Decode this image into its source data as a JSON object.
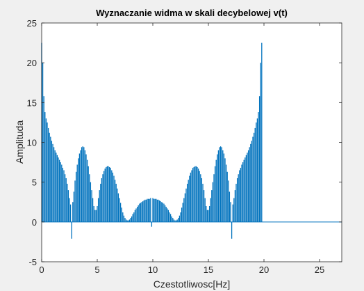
{
  "window": {
    "background": "#f0f0f0"
  },
  "chart_data": {
    "type": "bar",
    "title": "Wyznaczanie widma w skali decybelowej v(t)",
    "xlabel": "Czestotliwosc[Hz]",
    "ylabel": "Amplituda",
    "xlim": [
      0,
      27
    ],
    "ylim": [
      -5,
      25
    ],
    "xticks": [
      0,
      5,
      10,
      15,
      20,
      25
    ],
    "yticks": [
      -5,
      0,
      5,
      10,
      15,
      20,
      25
    ],
    "grid": false,
    "bar_color": "#0072bd",
    "series": [
      {
        "x_start": 0,
        "x_step": 0.1,
        "values": [
          22.5,
          20.0,
          15.8,
          13.8,
          13.0,
          12.5,
          11.8,
          11.2,
          10.7,
          10.2,
          9.8,
          9.4,
          9.0,
          8.7,
          8.4,
          8.1,
          7.8,
          7.5,
          7.2,
          6.8,
          6.5,
          6.0,
          5.5,
          4.8,
          4.0,
          3.0,
          2.2,
          -2.1,
          2.5,
          3.8,
          5.2,
          6.3,
          7.2,
          8.0,
          8.6,
          9.0,
          9.4,
          9.5,
          9.4,
          9.0,
          8.5,
          7.8,
          7.0,
          6.0,
          5.0,
          4.0,
          3.0,
          2.0,
          1.5,
          1.5,
          2.0,
          3.0,
          4.0,
          4.8,
          5.5,
          6.0,
          6.4,
          6.7,
          6.9,
          7.0,
          7.0,
          6.9,
          6.8,
          6.5,
          6.2,
          5.8,
          5.3,
          4.8,
          4.2,
          3.6,
          3.0,
          2.4,
          1.8,
          1.2,
          0.8,
          0.5,
          0.3,
          0.2,
          0.2,
          0.3,
          0.5,
          0.7,
          1.0,
          1.2,
          1.5,
          1.7,
          1.9,
          2.1,
          2.3,
          2.4,
          2.5,
          2.6,
          2.7,
          2.8,
          2.8,
          2.9,
          2.9,
          2.9,
          3.0,
          -0.6,
          3.0,
          2.9,
          2.9,
          2.9,
          2.8,
          2.8,
          2.7,
          2.6,
          2.5,
          2.4,
          2.3,
          2.1,
          1.9,
          1.7,
          1.5,
          1.2,
          1.0,
          0.7,
          0.5,
          0.3,
          0.2,
          0.2,
          0.3,
          0.5,
          0.8,
          1.2,
          1.8,
          2.4,
          3.0,
          3.6,
          4.2,
          4.8,
          5.3,
          5.8,
          6.2,
          6.5,
          6.8,
          6.9,
          7.0,
          7.0,
          6.9,
          6.7,
          6.4,
          6.0,
          5.5,
          4.8,
          4.0,
          3.0,
          2.0,
          1.5,
          1.5,
          2.0,
          3.0,
          4.0,
          5.0,
          6.0,
          7.0,
          7.8,
          8.5,
          9.0,
          9.4,
          9.5,
          9.4,
          9.0,
          8.6,
          8.0,
          7.2,
          6.3,
          5.2,
          3.8,
          2.5,
          -2.1,
          2.2,
          3.0,
          4.0,
          4.8,
          5.5,
          6.0,
          6.5,
          6.8,
          7.2,
          7.5,
          7.8,
          8.1,
          8.4,
          8.7,
          9.0,
          9.4,
          9.8,
          10.2,
          10.7,
          11.2,
          11.8,
          12.5,
          13.0,
          13.8,
          15.8,
          20.0,
          22.5
        ]
      }
    ]
  }
}
